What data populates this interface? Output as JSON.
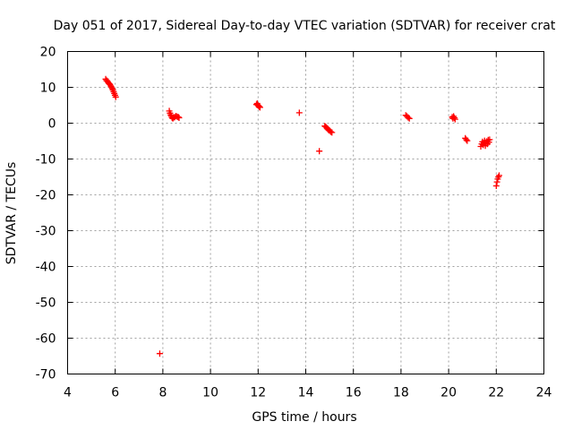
{
  "chart_data": {
    "type": "scatter",
    "title": "Day 051 of 2017, Sidereal Day-to-day VTEC variation (SDTVAR) for receiver crat",
    "xlabel": "GPS time / hours",
    "ylabel": "SDTVAR / TECUs",
    "xlim": [
      4,
      24
    ],
    "ylim": [
      -70,
      20
    ],
    "xticks": [
      4,
      6,
      8,
      10,
      12,
      14,
      16,
      18,
      20,
      22,
      24
    ],
    "yticks": [
      -70,
      -60,
      -50,
      -40,
      -30,
      -20,
      -10,
      0,
      10,
      20
    ],
    "grid": true,
    "marker": "+",
    "color": "#ff0000",
    "series": [
      {
        "name": "SDTVAR",
        "points": [
          [
            5.6,
            12.3
          ],
          [
            5.63,
            11.9
          ],
          [
            5.66,
            11.8
          ],
          [
            5.69,
            11.5
          ],
          [
            5.72,
            11.2
          ],
          [
            5.75,
            11.0
          ],
          [
            5.78,
            10.8
          ],
          [
            5.81,
            10.4
          ],
          [
            5.84,
            10.1
          ],
          [
            5.87,
            9.7
          ],
          [
            5.9,
            9.3
          ],
          [
            5.93,
            8.8
          ],
          [
            5.96,
            8.3
          ],
          [
            5.99,
            7.8
          ],
          [
            6.02,
            7.3
          ],
          [
            7.87,
            -64.3
          ],
          [
            8.27,
            3.4
          ],
          [
            8.3,
            2.8
          ],
          [
            8.33,
            2.3
          ],
          [
            8.36,
            1.9
          ],
          [
            8.39,
            1.5
          ],
          [
            8.42,
            1.3
          ],
          [
            8.45,
            1.6
          ],
          [
            8.5,
            1.7
          ],
          [
            8.55,
            2.0
          ],
          [
            8.6,
            1.8
          ],
          [
            8.65,
            1.7
          ],
          [
            8.68,
            1.5
          ],
          [
            11.93,
            5.2
          ],
          [
            11.96,
            5.5
          ],
          [
            11.99,
            5.0
          ],
          [
            12.02,
            4.8
          ],
          [
            12.05,
            4.6
          ],
          [
            12.08,
            4.4
          ],
          [
            13.73,
            2.9
          ],
          [
            14.57,
            -7.8
          ],
          [
            14.8,
            -0.8
          ],
          [
            14.84,
            -1.0
          ],
          [
            14.88,
            -1.3
          ],
          [
            14.92,
            -1.6
          ],
          [
            14.96,
            -1.9
          ],
          [
            15.0,
            -2.1
          ],
          [
            15.05,
            -2.4
          ],
          [
            15.1,
            -2.6
          ],
          [
            18.2,
            2.2
          ],
          [
            18.25,
            1.9
          ],
          [
            18.3,
            1.6
          ],
          [
            18.35,
            1.3
          ],
          [
            20.15,
            1.7
          ],
          [
            20.18,
            1.3
          ],
          [
            20.21,
            1.9
          ],
          [
            20.24,
            1.5
          ],
          [
            20.27,
            1.1
          ],
          [
            20.7,
            -4.2
          ],
          [
            20.74,
            -4.6
          ],
          [
            20.78,
            -4.9
          ],
          [
            21.35,
            -6.5
          ],
          [
            21.39,
            -5.8
          ],
          [
            21.42,
            -5.2
          ],
          [
            21.45,
            -6.1
          ],
          [
            21.48,
            -5.5
          ],
          [
            21.51,
            -4.9
          ],
          [
            21.54,
            -6.3
          ],
          [
            21.57,
            -5.6
          ],
          [
            21.6,
            -5.1
          ],
          [
            21.63,
            -5.8
          ],
          [
            21.66,
            -4.7
          ],
          [
            21.69,
            -5.3
          ],
          [
            21.72,
            -4.6
          ],
          [
            22.0,
            -17.5
          ],
          [
            22.03,
            -16.4
          ],
          [
            22.06,
            -15.6
          ],
          [
            22.09,
            -15.0
          ],
          [
            22.12,
            -14.6
          ]
        ]
      }
    ]
  }
}
